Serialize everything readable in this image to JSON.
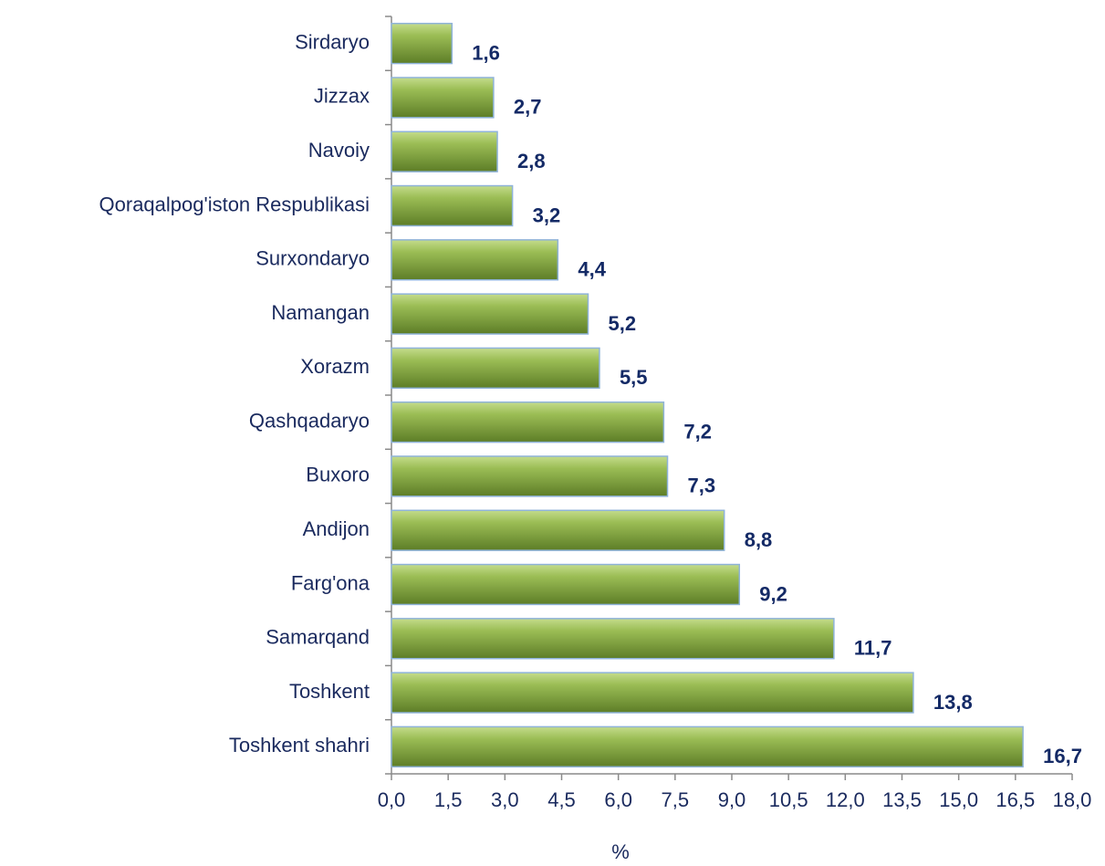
{
  "chart_data": {
    "type": "bar",
    "orientation": "horizontal",
    "categories": [
      "Sirdaryo",
      "Jizzax",
      "Navoiy",
      "Qoraqalpog'iston Respublikasi",
      "Surxondaryo",
      "Namangan",
      "Xorazm",
      "Qashqadaryo",
      "Buxoro",
      "Andijon",
      "Farg'ona",
      "Samarqand",
      "Toshkent",
      "Toshkent shahri"
    ],
    "values": [
      1.6,
      2.7,
      2.8,
      3.2,
      4.4,
      5.2,
      5.5,
      7.2,
      7.3,
      8.8,
      9.2,
      11.7,
      13.8,
      16.7
    ],
    "value_labels": [
      "1,6",
      "2,7",
      "2,8",
      "3,2",
      "4,4",
      "5,2",
      "5,5",
      "7,2",
      "7,3",
      "8,8",
      "9,2",
      "11,7",
      "13,8",
      "16,7"
    ],
    "color": "#77993a",
    "xlabel": "%",
    "xlim": [
      0,
      18
    ],
    "xticks": [
      {
        "value": 0,
        "label": "0,0"
      },
      {
        "value": 1.5,
        "label": "1,5"
      },
      {
        "value": 3,
        "label": "3,0"
      },
      {
        "value": 4.5,
        "label": "4,5"
      },
      {
        "value": 6,
        "label": "6,0"
      },
      {
        "value": 7.5,
        "label": "7,5"
      },
      {
        "value": 9,
        "label": "9,0"
      },
      {
        "value": 10.5,
        "label": "10,5"
      },
      {
        "value": 12,
        "label": "12,0"
      },
      {
        "value": 13.5,
        "label": "13,5"
      },
      {
        "value": 15,
        "label": "15,0"
      },
      {
        "value": 16.5,
        "label": "16,5"
      },
      {
        "value": 18,
        "label": "18,0"
      }
    ],
    "grid": false
  }
}
